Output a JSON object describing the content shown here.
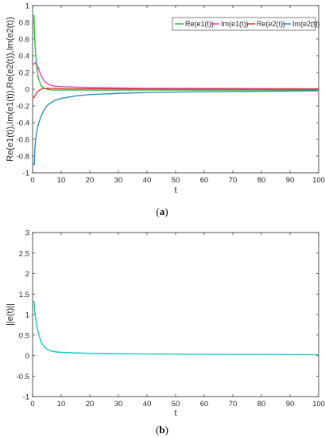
{
  "captions": [
    {
      "open": "(",
      "letter": "a",
      "close": ")"
    },
    {
      "open": "(",
      "letter": "b",
      "close": ")"
    }
  ],
  "chart_data": [
    {
      "type": "line",
      "xlabel": "t",
      "ylabel": "Re(e1(t)),Im(e1(t)),Re(e2(t)),Im(e2(t))",
      "xlim": [
        0,
        100
      ],
      "ylim": [
        -1,
        1
      ],
      "xticks": [
        0,
        10,
        20,
        30,
        40,
        50,
        60,
        70,
        80,
        90,
        100
      ],
      "yticks": [
        -1,
        -0.8,
        -0.6,
        -0.4,
        -0.2,
        0,
        0.2,
        0.4,
        0.6,
        0.8,
        1
      ],
      "ytick_labels": [
        "-1",
        "-0.8",
        "-0.6",
        "-0.4",
        "-0.2",
        "0",
        "0.2",
        "0.4",
        "0.6",
        "0.8",
        "1"
      ],
      "legend_position": "top-right",
      "grid": false,
      "series": [
        {
          "name": "Re(e1(t))",
          "color": "#22c232",
          "x": [
            0,
            0.5,
            0.6,
            1,
            1.5,
            2,
            3,
            4,
            5,
            7,
            10,
            20,
            100
          ],
          "y": [
            0.88,
            0.88,
            0.72,
            0.45,
            0.25,
            0.13,
            0.04,
            0.01,
            0.0,
            -0.01,
            -0.01,
            -0.01,
            -0.01
          ]
        },
        {
          "name": "Im(e1(t))",
          "color": "#e040c8",
          "x": [
            0,
            0.5,
            1,
            1.5,
            2,
            3,
            4,
            5,
            6,
            8,
            10,
            20,
            40,
            100
          ],
          "y": [
            0.3,
            0.3,
            0.32,
            0.3,
            0.25,
            0.16,
            0.1,
            0.07,
            0.05,
            0.035,
            0.03,
            0.02,
            0.01,
            0.005
          ]
        },
        {
          "name": "Re(e2(t))",
          "color": "#d63a3a",
          "x": [
            0,
            0.5,
            1,
            1.5,
            2,
            3,
            4,
            5,
            7,
            10,
            100
          ],
          "y": [
            -0.1,
            -0.1,
            -0.07,
            -0.04,
            -0.02,
            0.0,
            0.01,
            0.01,
            0.01,
            0.005,
            0.0
          ]
        },
        {
          "name": "Im(e2(t))",
          "color": "#2f8fbf",
          "x": [
            0,
            0.6,
            0.8,
            1,
            1.5,
            2,
            3,
            4,
            5,
            6,
            8,
            10,
            15,
            20,
            30,
            40,
            60,
            80,
            100
          ],
          "y": [
            -0.9,
            -0.9,
            -0.72,
            -0.62,
            -0.5,
            -0.42,
            -0.32,
            -0.25,
            -0.2,
            -0.17,
            -0.13,
            -0.11,
            -0.08,
            -0.065,
            -0.05,
            -0.04,
            -0.03,
            -0.025,
            -0.02
          ]
        }
      ]
    },
    {
      "type": "line",
      "xlabel": "t",
      "ylabel": "||e(t)||",
      "xlim": [
        0,
        100
      ],
      "ylim": [
        -1,
        3
      ],
      "xticks": [
        0,
        10,
        20,
        30,
        40,
        50,
        60,
        70,
        80,
        90,
        100
      ],
      "yticks": [
        -1,
        -0.5,
        0,
        0.5,
        1,
        1.5,
        2,
        2.5,
        3
      ],
      "ytick_labels": [
        "-1",
        "-0.5",
        "0",
        "0.5",
        "1",
        "1.5",
        "2",
        "2.5",
        "3"
      ],
      "grid": false,
      "series": [
        {
          "color": "#17c4c4",
          "x": [
            0,
            0.5,
            0.7,
            1,
            1.5,
            2,
            3,
            4,
            5,
            6,
            8,
            10,
            15,
            20,
            30,
            40,
            60,
            80,
            100
          ],
          "y": [
            1.32,
            1.32,
            1.12,
            0.95,
            0.72,
            0.55,
            0.33,
            0.22,
            0.16,
            0.12,
            0.09,
            0.08,
            0.065,
            0.055,
            0.045,
            0.04,
            0.03,
            0.025,
            0.02
          ]
        }
      ]
    }
  ]
}
